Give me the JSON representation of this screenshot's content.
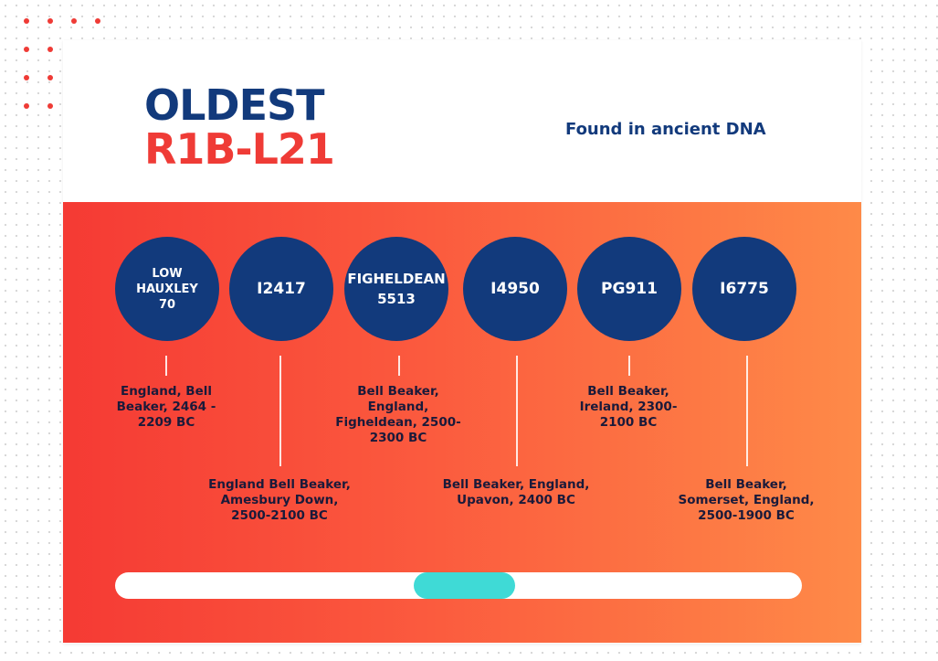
{
  "header": {
    "title_line1": "OLDEST",
    "title_line2": "R1B-L21",
    "subtitle": "Found in ancient DNA"
  },
  "colors": {
    "navy": "#123a7c",
    "red": "#ef3b36",
    "gradient_start": "#f53a34",
    "gradient_end": "#fe8a48",
    "scroll_thumb": "#3fdad6"
  },
  "samples": [
    {
      "id": "LOW HAUXLEY 70",
      "description": "England, Bell Beaker, 2464 - 2209 BC"
    },
    {
      "id": "I2417",
      "description": "England Bell Beaker, Amesbury Down, 2500-2100 BC"
    },
    {
      "id": "FIGHELDEAN 5513",
      "description": "Bell Beaker, England, Figheldean, 2500-2300 BC"
    },
    {
      "id": "I4950",
      "description": "Bell Beaker, England, Upavon, 2400 BC"
    },
    {
      "id": "PG911",
      "description": "Bell Beaker, Ireland, 2300-2100 BC"
    },
    {
      "id": "I6775",
      "description": "Bell Beaker, Somerset, England, 2500-1900 BC"
    }
  ],
  "scrollbar": {
    "position_fraction": 0.51
  }
}
